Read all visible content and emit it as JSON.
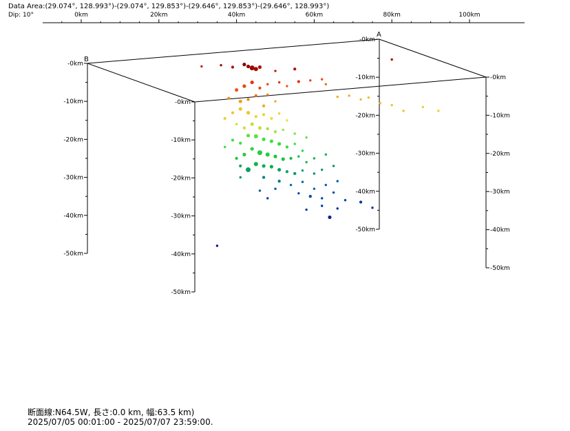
{
  "header": {
    "data_area": "Data Area:(29.074°, 128.993°)-(29.074°, 129.853°)-(29.646°, 129.853°)-(29.646°, 128.993°)",
    "dip": "Dip: 10°"
  },
  "footer": {
    "section": "断面線:N64.5W, 長さ:0.0 km, 幅:63.5 km)",
    "period": "2025/07/05 00:01:00 - 2025/07/07 23:59:00."
  },
  "chart_data": {
    "type": "scatter",
    "title": "",
    "xlabel": "",
    "ylabel": "",
    "top_axis": {
      "ticks": [
        {
          "v": 0,
          "label": "0km"
        },
        {
          "v": 20,
          "label": "20km"
        },
        {
          "v": 40,
          "label": "40km"
        },
        {
          "v": 60,
          "label": "60km"
        },
        {
          "v": 80,
          "label": "80km"
        },
        {
          "v": 100,
          "label": "100km"
        }
      ]
    },
    "corner_labels": {
      "A": "A",
      "B": "B"
    },
    "depth_axes": [
      {
        "name": "depth-axis-front",
        "ticks": [
          "-0km",
          "-10km",
          "-20km",
          "-30km",
          "-40km",
          "-50km"
        ]
      },
      {
        "name": "depth-axis-left",
        "ticks": [
          "-0km",
          "-10km",
          "-20km",
          "-30km",
          "-40km",
          "-50km"
        ]
      },
      {
        "name": "depth-axis-center",
        "ticks": [
          "-0km",
          "-10km",
          "-20km",
          "-30km",
          "-40km",
          "-50km"
        ]
      },
      {
        "name": "depth-axis-right",
        "ticks": [
          "-0km",
          "-10km",
          "-20km",
          "-30km",
          "-40km",
          "-50km"
        ]
      }
    ],
    "depth_range_km": [
      0,
      50
    ],
    "color_scale": [
      {
        "depth": 0,
        "color": "#8b0000"
      },
      {
        "depth": 5,
        "color": "#e83010"
      },
      {
        "depth": 10,
        "color": "#f0a020"
      },
      {
        "depth": 15,
        "color": "#e8e030"
      },
      {
        "depth": 20,
        "color": "#40e040"
      },
      {
        "depth": 25,
        "color": "#10c040"
      },
      {
        "depth": 30,
        "color": "#009070"
      },
      {
        "depth": 35,
        "color": "#0050b0"
      },
      {
        "depth": 45,
        "color": "#001890"
      }
    ],
    "points": [
      {
        "x": 44,
        "y": 1.2,
        "d": 1,
        "m": 3
      },
      {
        "x": 45,
        "y": 1.5,
        "d": 1,
        "m": 2.5
      },
      {
        "x": 46,
        "y": 1.0,
        "d": 2,
        "m": 2
      },
      {
        "x": 43,
        "y": 0.8,
        "d": 0,
        "m": 2
      },
      {
        "x": 42,
        "y": 0.3,
        "d": 0,
        "m": 2
      },
      {
        "x": 39,
        "y": 1.0,
        "d": 2,
        "m": 1.5
      },
      {
        "x": 36,
        "y": 0.5,
        "d": 1,
        "m": 1
      },
      {
        "x": 31,
        "y": 0.8,
        "d": 3,
        "m": 1
      },
      {
        "x": 50,
        "y": 2,
        "d": 3,
        "m": 1
      },
      {
        "x": 55,
        "y": 1.5,
        "d": 2,
        "m": 1.5
      },
      {
        "x": 80,
        "y": -1,
        "d": 1,
        "m": 1
      },
      {
        "x": 44,
        "y": 5,
        "d": 5,
        "m": 2
      },
      {
        "x": 42,
        "y": 6,
        "d": 6,
        "m": 2
      },
      {
        "x": 46,
        "y": 6.5,
        "d": 6,
        "m": 1.5
      },
      {
        "x": 40,
        "y": 7,
        "d": 7,
        "m": 2
      },
      {
        "x": 48,
        "y": 5.5,
        "d": 6,
        "m": 1
      },
      {
        "x": 51,
        "y": 5,
        "d": 5,
        "m": 1
      },
      {
        "x": 53,
        "y": 6,
        "d": 7,
        "m": 1
      },
      {
        "x": 56,
        "y": 4.8,
        "d": 5,
        "m": 1.5
      },
      {
        "x": 59,
        "y": 4.5,
        "d": 6,
        "m": 1
      },
      {
        "x": 62,
        "y": 4.2,
        "d": 6,
        "m": 1
      },
      {
        "x": 63,
        "y": 5.5,
        "d": 8,
        "m": 1
      },
      {
        "x": 45,
        "y": 8.5,
        "d": 8,
        "m": 1.5
      },
      {
        "x": 43,
        "y": 9.5,
        "d": 9,
        "m": 1.5
      },
      {
        "x": 41,
        "y": 10,
        "d": 10,
        "m": 2
      },
      {
        "x": 38,
        "y": 9.2,
        "d": 9,
        "m": 1.5
      },
      {
        "x": 48,
        "y": 8.2,
        "d": 9,
        "m": 1
      },
      {
        "x": 50,
        "y": 10,
        "d": 11,
        "m": 1
      },
      {
        "x": 47,
        "y": 11.2,
        "d": 11,
        "m": 1.5
      },
      {
        "x": 66,
        "y": 8.8,
        "d": 11,
        "m": 1
      },
      {
        "x": 69,
        "y": 8.5,
        "d": 11,
        "m": 1
      },
      {
        "x": 72,
        "y": 9.5,
        "d": 12,
        "m": 1
      },
      {
        "x": 74,
        "y": 9,
        "d": 12,
        "m": 1
      },
      {
        "x": 77,
        "y": 10.5,
        "d": 12,
        "m": 1
      },
      {
        "x": 80,
        "y": 11,
        "d": 13,
        "m": 1
      },
      {
        "x": 83,
        "y": 12.5,
        "d": 13,
        "m": 1
      },
      {
        "x": 88,
        "y": 11.5,
        "d": 14,
        "m": 1
      },
      {
        "x": 92,
        "y": 12.5,
        "d": 14,
        "m": 1
      },
      {
        "x": 41,
        "y": 12,
        "d": 13,
        "m": 2
      },
      {
        "x": 43,
        "y": 13,
        "d": 13,
        "m": 2
      },
      {
        "x": 45,
        "y": 14,
        "d": 14,
        "m": 1.5
      },
      {
        "x": 39,
        "y": 13,
        "d": 13,
        "m": 1.5
      },
      {
        "x": 37,
        "y": 14.5,
        "d": 14,
        "m": 1.5
      },
      {
        "x": 47,
        "y": 13.5,
        "d": 14,
        "m": 1.5
      },
      {
        "x": 49,
        "y": 14.5,
        "d": 15,
        "m": 1.5
      },
      {
        "x": 51,
        "y": 13.2,
        "d": 14,
        "m": 1
      },
      {
        "x": 53,
        "y": 15,
        "d": 15,
        "m": 1
      },
      {
        "x": 44,
        "y": 16,
        "d": 16,
        "m": 2
      },
      {
        "x": 46,
        "y": 17,
        "d": 16,
        "m": 2
      },
      {
        "x": 48,
        "y": 17.2,
        "d": 17,
        "m": 1.5
      },
      {
        "x": 42,
        "y": 17,
        "d": 16,
        "m": 1.5
      },
      {
        "x": 40,
        "y": 16,
        "d": 16,
        "m": 1
      },
      {
        "x": 50,
        "y": 18,
        "d": 17,
        "m": 1.5
      },
      {
        "x": 52,
        "y": 17.5,
        "d": 17,
        "m": 1
      },
      {
        "x": 55,
        "y": 18.5,
        "d": 18,
        "m": 1
      },
      {
        "x": 58,
        "y": 19.5,
        "d": 19,
        "m": 1
      },
      {
        "x": 43,
        "y": 19,
        "d": 19,
        "m": 2
      },
      {
        "x": 45,
        "y": 19.2,
        "d": 19,
        "m": 2.5
      },
      {
        "x": 47,
        "y": 20,
        "d": 20,
        "m": 2
      },
      {
        "x": 49,
        "y": 20.5,
        "d": 20,
        "m": 2
      },
      {
        "x": 51,
        "y": 21.2,
        "d": 21,
        "m": 2
      },
      {
        "x": 41,
        "y": 21,
        "d": 20,
        "m": 1.5
      },
      {
        "x": 39,
        "y": 20.2,
        "d": 20,
        "m": 1.5
      },
      {
        "x": 37,
        "y": 22,
        "d": 21,
        "m": 1
      },
      {
        "x": 53,
        "y": 22,
        "d": 21,
        "m": 1.5
      },
      {
        "x": 55,
        "y": 21.2,
        "d": 21,
        "m": 1
      },
      {
        "x": 57,
        "y": 23,
        "d": 22,
        "m": 1
      },
      {
        "x": 44,
        "y": 22.5,
        "d": 22,
        "m": 2
      },
      {
        "x": 46,
        "y": 23.5,
        "d": 23,
        "m": 3
      },
      {
        "x": 48,
        "y": 24,
        "d": 23,
        "m": 2.5
      },
      {
        "x": 50,
        "y": 24.5,
        "d": 24,
        "m": 2
      },
      {
        "x": 52,
        "y": 25.2,
        "d": 24,
        "m": 2
      },
      {
        "x": 42,
        "y": 24,
        "d": 23,
        "m": 2
      },
      {
        "x": 40,
        "y": 25,
        "d": 24,
        "m": 1.5
      },
      {
        "x": 54,
        "y": 25,
        "d": 25,
        "m": 1.5
      },
      {
        "x": 56,
        "y": 24.5,
        "d": 25,
        "m": 1
      },
      {
        "x": 58,
        "y": 26,
        "d": 26,
        "m": 1
      },
      {
        "x": 60,
        "y": 25,
        "d": 26,
        "m": 1
      },
      {
        "x": 63,
        "y": 24,
        "d": 26,
        "m": 1
      },
      {
        "x": 45,
        "y": 26.5,
        "d": 26,
        "m": 2.5
      },
      {
        "x": 47,
        "y": 27,
        "d": 27,
        "m": 2
      },
      {
        "x": 49,
        "y": 27.2,
        "d": 27,
        "m": 2
      },
      {
        "x": 51,
        "y": 28,
        "d": 28,
        "m": 2
      },
      {
        "x": 53,
        "y": 28.5,
        "d": 28,
        "m": 1.5
      },
      {
        "x": 43,
        "y": 28,
        "d": 28,
        "m": 3
      },
      {
        "x": 41,
        "y": 27,
        "d": 27,
        "m": 1.5
      },
      {
        "x": 55,
        "y": 29,
        "d": 29,
        "m": 1.5
      },
      {
        "x": 57,
        "y": 28.2,
        "d": 29,
        "m": 1
      },
      {
        "x": 60,
        "y": 29,
        "d": 30,
        "m": 1
      },
      {
        "x": 62,
        "y": 28,
        "d": 30,
        "m": 1
      },
      {
        "x": 65,
        "y": 27,
        "d": 30,
        "m": 1
      },
      {
        "x": 41,
        "y": 30,
        "d": 30,
        "m": 1
      },
      {
        "x": 47,
        "y": 30,
        "d": 31,
        "m": 1.5
      },
      {
        "x": 51,
        "y": 31,
        "d": 32,
        "m": 1.5
      },
      {
        "x": 54,
        "y": 32,
        "d": 33,
        "m": 1
      },
      {
        "x": 57,
        "y": 31.2,
        "d": 33,
        "m": 1
      },
      {
        "x": 60,
        "y": 33,
        "d": 34,
        "m": 1
      },
      {
        "x": 63,
        "y": 32,
        "d": 34,
        "m": 1
      },
      {
        "x": 66,
        "y": 31,
        "d": 34,
        "m": 1
      },
      {
        "x": 50,
        "y": 33,
        "d": 35,
        "m": 1
      },
      {
        "x": 46,
        "y": 33.5,
        "d": 34,
        "m": 1
      },
      {
        "x": 56,
        "y": 34.2,
        "d": 36,
        "m": 1
      },
      {
        "x": 59,
        "y": 35,
        "d": 36,
        "m": 1.5
      },
      {
        "x": 62,
        "y": 35.5,
        "d": 37,
        "m": 1
      },
      {
        "x": 65,
        "y": 34,
        "d": 37,
        "m": 1
      },
      {
        "x": 68,
        "y": 36,
        "d": 38,
        "m": 1
      },
      {
        "x": 72,
        "y": 36.5,
        "d": 39,
        "m": 1.5
      },
      {
        "x": 75,
        "y": 38,
        "d": 40,
        "m": 1
      },
      {
        "x": 62,
        "y": 37.5,
        "d": 40,
        "m": 1
      },
      {
        "x": 66,
        "y": 38.2,
        "d": 41,
        "m": 1
      },
      {
        "x": 58,
        "y": 38.5,
        "d": 40,
        "m": 1
      },
      {
        "x": 64,
        "y": 40.5,
        "d": 43,
        "m": 2
      },
      {
        "x": 48,
        "y": 35.5,
        "d": 38,
        "m": 1
      },
      {
        "x": 35,
        "y": 48,
        "d": 48,
        "m": 1
      }
    ]
  }
}
